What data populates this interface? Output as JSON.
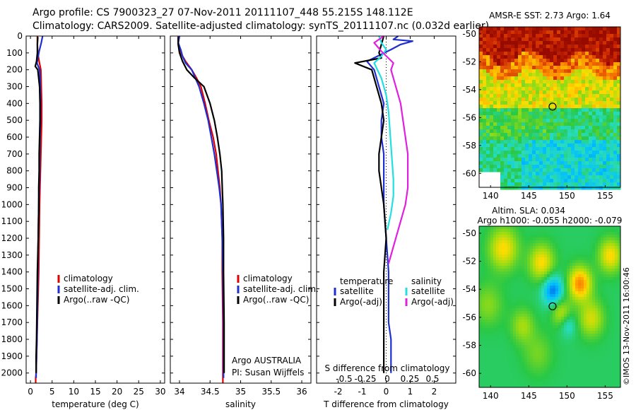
{
  "header": {
    "line1": "Argo profile: CS 7900323_27 07-Nov-2011 20111107_448 55.215S 148.112E",
    "line2": "Climatology: CARS2009. Satellite-adjusted climatology: synTS_20111107.nc (0.032d earlier)"
  },
  "watermark": "©IMOS 13-Nov-2011 16:00:46",
  "colors": {
    "climatology": "#e00000",
    "satellite": "#1e2fd0",
    "argo": "#000000",
    "sal_sat": "#22e0e0",
    "sal_argo": "#e020e0"
  },
  "chart_data": [
    {
      "type": "line",
      "panel": "temperature",
      "xlabel": "temperature (deg C)",
      "ylabel": "",
      "xlim": [
        -1,
        31
      ],
      "ylim": [
        2060,
        0
      ],
      "xticks": [
        0,
        5,
        10,
        15,
        20,
        25,
        30
      ],
      "yticks": [
        0,
        100,
        200,
        300,
        400,
        500,
        600,
        700,
        800,
        900,
        1000,
        1100,
        1200,
        1300,
        1400,
        1500,
        1600,
        1700,
        1800,
        1900,
        2000
      ],
      "legend": {
        "placement": "lower-middle",
        "entries": [
          "climatology",
          "satellite-adj. clim.",
          "Argo(..raw -QC)"
        ]
      },
      "series": [
        {
          "name": "climatology",
          "color": "#e00000",
          "x": [
            1.6,
            1.6,
            1.7,
            2.0,
            2.4,
            2.5,
            2.6,
            2.6,
            2.5,
            2.4,
            2.3,
            2.2,
            2.1,
            2.0,
            1.9,
            1.7,
            1.6,
            1.5,
            1.4,
            1.3,
            1.2,
            1.2
          ],
          "y": [
            0,
            50,
            100,
            150,
            200,
            300,
            400,
            500,
            600,
            700,
            800,
            900,
            1000,
            1200,
            1400,
            1600,
            1700,
            1800,
            1900,
            2000,
            2030,
            2060
          ]
        },
        {
          "name": "satellite-adj. clim.",
          "color": "#1e2fd0",
          "x": [
            2.8,
            2.5,
            2.0,
            1.5,
            2.1,
            2.3,
            2.3,
            2.3,
            2.2,
            2.1,
            2.1,
            2.0,
            1.9,
            1.8,
            1.7,
            1.6,
            1.5,
            1.4,
            1.3,
            1.3
          ],
          "y": [
            0,
            40,
            90,
            160,
            200,
            300,
            400,
            500,
            600,
            700,
            800,
            900,
            1000,
            1200,
            1400,
            1600,
            1800,
            1900,
            2000,
            2030
          ]
        },
        {
          "name": "Argo(..raw -QC)",
          "color": "#000000",
          "x": [
            1.7,
            1.6,
            1.6,
            1.4,
            1.1,
            1.7,
            2.1,
            2.2,
            2.2,
            2.1,
            2.0,
            2.0,
            1.9,
            1.9,
            1.8,
            1.6,
            1.5,
            1.4,
            1.3,
            1.3
          ],
          "y": [
            5,
            50,
            100,
            150,
            180,
            200,
            300,
            400,
            500,
            600,
            700,
            800,
            900,
            1000,
            1200,
            1400,
            1600,
            1800,
            1900,
            2000
          ]
        }
      ]
    },
    {
      "type": "line",
      "panel": "salinity",
      "xlabel": "salinity",
      "ylabel": "",
      "xlim": [
        33.85,
        36.15
      ],
      "ylim": [
        2060,
        0
      ],
      "xticks": [
        34,
        34.5,
        35,
        35.5,
        36
      ],
      "legend": {
        "placement": "lower-middle",
        "entries": [
          "climatology",
          "satellite-adj. clim.",
          "Argo(..raw -QC)"
        ]
      },
      "annotation": [
        "Argo AUSTRALIA",
        "PI: Susan Wijffels"
      ],
      "series": [
        {
          "name": "climatology",
          "color": "#e00000",
          "x": [
            33.98,
            33.98,
            34.02,
            34.1,
            34.2,
            34.28,
            34.35,
            34.42,
            34.48,
            34.55,
            34.6,
            34.63,
            34.66,
            34.68,
            34.69,
            34.7,
            34.7,
            34.71,
            34.71
          ],
          "y": [
            0,
            50,
            100,
            150,
            200,
            250,
            300,
            400,
            500,
            600,
            700,
            800,
            900,
            1000,
            1100,
            1200,
            1400,
            1700,
            2060
          ]
        },
        {
          "name": "satellite-adj. clim.",
          "color": "#1e2fd0",
          "x": [
            34.0,
            33.98,
            34.02,
            34.05,
            34.1,
            34.2,
            34.32,
            34.4,
            34.47,
            34.52,
            34.57,
            34.61,
            34.65,
            34.68,
            34.7,
            34.71,
            34.72,
            34.72
          ],
          "y": [
            0,
            40,
            80,
            120,
            160,
            200,
            300,
            400,
            500,
            600,
            700,
            800,
            900,
            1000,
            1200,
            1400,
            1700,
            2030
          ]
        },
        {
          "name": "Argo(..raw -QC)",
          "color": "#000000",
          "x": [
            33.98,
            33.98,
            34.0,
            34.05,
            34.12,
            34.25,
            34.4,
            34.5,
            34.57,
            34.62,
            34.66,
            34.69,
            34.7,
            34.71,
            34.72,
            34.72,
            34.73,
            34.73
          ],
          "y": [
            5,
            50,
            100,
            150,
            200,
            250,
            300,
            400,
            500,
            600,
            700,
            800,
            900,
            1000,
            1200,
            1400,
            1700,
            2000
          ]
        }
      ]
    },
    {
      "type": "line",
      "panel": "difference",
      "xlabel": "T difference from climatology",
      "ylabel": "",
      "xlim": [
        -2.9,
        2.9
      ],
      "ylim": [
        2060,
        0
      ],
      "xticks": [
        -2,
        -1,
        0,
        1,
        2
      ],
      "secondary_axis": {
        "label": "S difference from climatology",
        "ticks": [
          "-0.5",
          "-0.25",
          "0",
          "0.25",
          "0.5"
        ]
      },
      "legend": {
        "placement": "lower-middle",
        "headers": [
          "temperature",
          "salinity"
        ],
        "entries": [
          "satellite",
          "Argo(-adj)",
          "satellite",
          "Argo(-adj)"
        ]
      },
      "series": [
        {
          "name": "satellite",
          "color": "#1e2fd0",
          "x": [
            0.5,
            0.3,
            1.1,
            0.6,
            0.2,
            -0.8,
            -0.5,
            -0.3,
            -0.1,
            -0.2,
            -0.2,
            -0.1,
            -0.1,
            -0.1,
            0.0,
            0.1,
            0.1,
            0.1,
            0.2,
            0.2,
            0.2
          ],
          "y": [
            0,
            20,
            30,
            50,
            80,
            150,
            200,
            300,
            400,
            500,
            600,
            700,
            800,
            1000,
            1200,
            1400,
            1600,
            1700,
            1800,
            1900,
            2000
          ]
        },
        {
          "name": "Argo(-adj)",
          "color": "#000000",
          "x": [
            -0.1,
            -0.2,
            -0.3,
            -0.2,
            -1.3,
            -0.6,
            -0.4,
            -0.2,
            -0.1,
            -0.2,
            -0.3,
            -0.3,
            -0.2,
            -0.1,
            0.0,
            -0.1,
            -0.1,
            -0.1,
            -0.1
          ],
          "y": [
            0,
            50,
            100,
            130,
            160,
            200,
            300,
            400,
            500,
            600,
            700,
            800,
            900,
            1000,
            1200,
            1400,
            1600,
            1800,
            2000
          ]
        },
        {
          "name": "satellite",
          "color": "#22e0e0",
          "x": [
            -0.3,
            -0.2,
            0.0,
            -0.2,
            -0.5,
            -0.2,
            0.0,
            0.1,
            0.15,
            0.2,
            0.25,
            0.3,
            0.3,
            0.2,
            0.05
          ],
          "y": [
            0,
            40,
            80,
            120,
            160,
            250,
            350,
            450,
            550,
            650,
            750,
            850,
            950,
            1050,
            1150
          ]
        },
        {
          "name": "Argo(-adj)",
          "color": "#e020e0",
          "x": [
            -0.1,
            -0.5,
            -0.2,
            0.3,
            0.2,
            0.4,
            0.6,
            0.7,
            0.8,
            0.9,
            0.9,
            0.9,
            0.8,
            0.6,
            0.4,
            0.3,
            0.2,
            0.1
          ],
          "y": [
            0,
            40,
            90,
            160,
            200,
            300,
            400,
            500,
            600,
            700,
            800,
            900,
            1000,
            1100,
            1200,
            1250,
            1300,
            1350
          ]
        }
      ]
    },
    {
      "type": "heatmap",
      "panel": "sst-map",
      "title": "AMSR-E SST: 2.73 Argo: 1.64",
      "xlim": [
        138.5,
        157
      ],
      "ylim": [
        -61,
        -49.5
      ],
      "xticks": [
        140,
        145,
        150,
        155
      ],
      "yticks": [
        -50,
        -52,
        -54,
        -56,
        -58,
        -60
      ],
      "marker": {
        "lon": 148.112,
        "lat": -55.215
      }
    },
    {
      "type": "heatmap",
      "panel": "sla-map",
      "title": [
        "Altim. SLA: 0.034",
        "Argo h1000: -0.055 h2000: -0.079"
      ],
      "xlim": [
        138.5,
        157
      ],
      "ylim": [
        -61,
        -49.5
      ],
      "xticks": [
        140,
        145,
        150,
        155
      ],
      "yticks": [
        -50,
        -52,
        -54,
        -56,
        -58,
        -60
      ],
      "marker": {
        "lon": 148.112,
        "lat": -55.215
      }
    }
  ]
}
